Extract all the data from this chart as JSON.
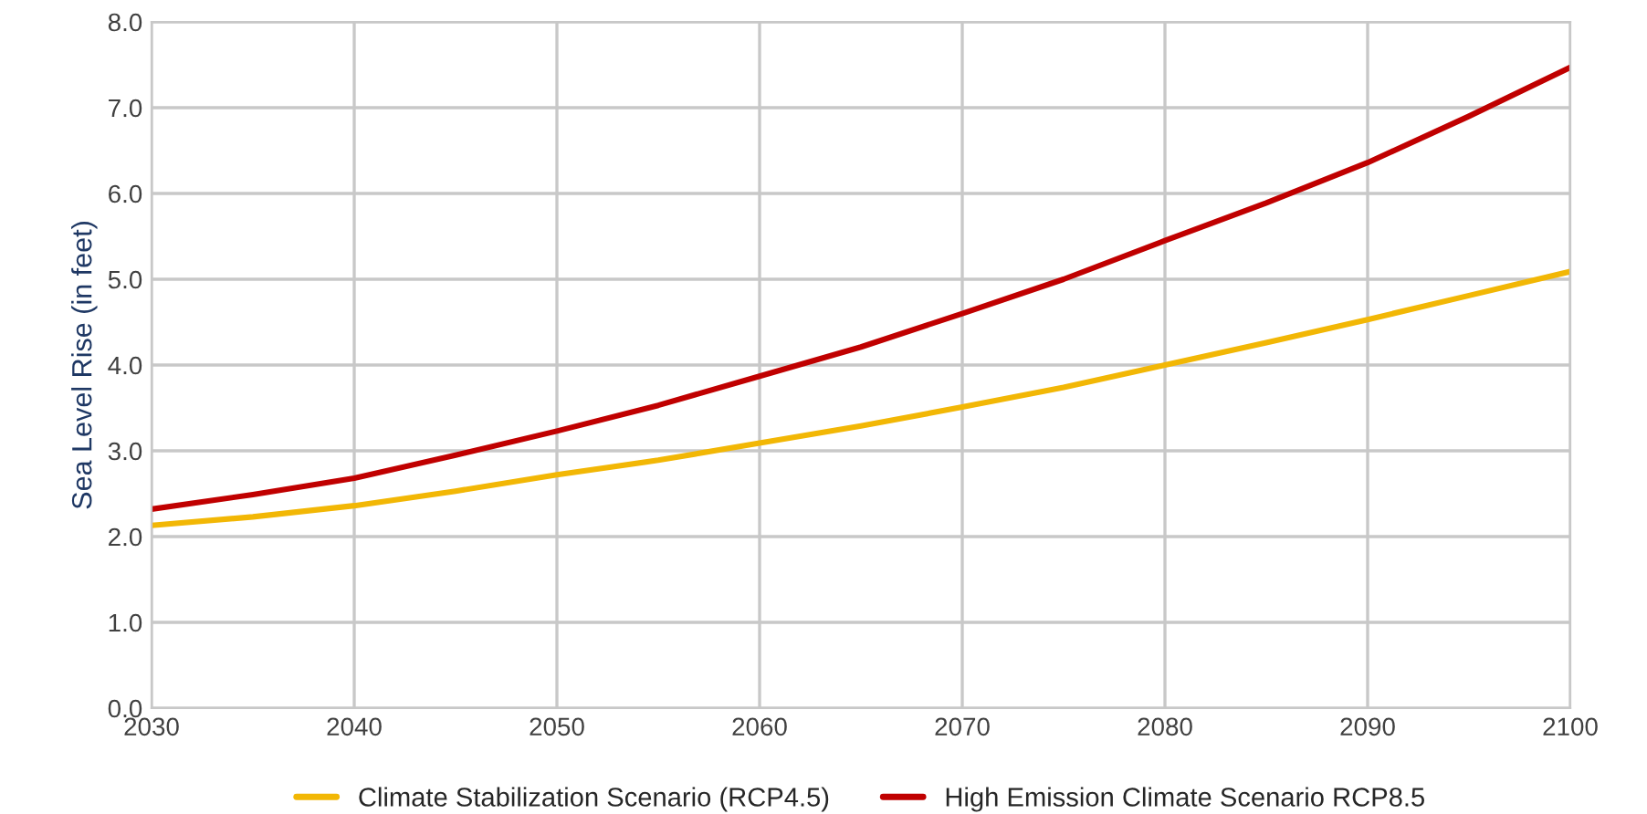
{
  "chart_data": {
    "type": "line",
    "ylabel": "Sea Level Rise (in feet)",
    "x": [
      2030,
      2035,
      2040,
      2045,
      2050,
      2055,
      2060,
      2065,
      2070,
      2075,
      2080,
      2085,
      2090,
      2095,
      2100
    ],
    "series": [
      {
        "name": "Climate Stabilization Scenario (RCP4.5)",
        "color": "#f2b705",
        "values": [
          2.13,
          2.23,
          2.36,
          2.53,
          2.72,
          2.89,
          3.09,
          3.29,
          3.51,
          3.74,
          4.0,
          4.26,
          4.53,
          4.81,
          5.09
        ]
      },
      {
        "name": "High Emission Climate Scenario RCP8.5",
        "color": "#c00000",
        "values": [
          2.32,
          2.49,
          2.68,
          2.95,
          3.23,
          3.53,
          3.87,
          4.21,
          4.6,
          5.0,
          5.45,
          5.89,
          6.36,
          6.9,
          7.47
        ]
      }
    ],
    "xlim": [
      2030,
      2100
    ],
    "xticks": [
      2030,
      2040,
      2050,
      2060,
      2070,
      2080,
      2090,
      2100
    ],
    "ylim": [
      0,
      8
    ],
    "yticks": [
      {
        "value": 0,
        "label": "0.0"
      },
      {
        "value": 1,
        "label": "1.0"
      },
      {
        "value": 2,
        "label": "2.0"
      },
      {
        "value": 3,
        "label": "3.0"
      },
      {
        "value": 4,
        "label": "4.0"
      },
      {
        "value": 5,
        "label": "5.0"
      },
      {
        "value": 6,
        "label": "6.0"
      },
      {
        "value": 7,
        "label": "7.0"
      },
      {
        "value": 8,
        "label": "8.0"
      }
    ],
    "grid": true,
    "legend": "bottom",
    "marker": "none",
    "line_style": "solid"
  }
}
